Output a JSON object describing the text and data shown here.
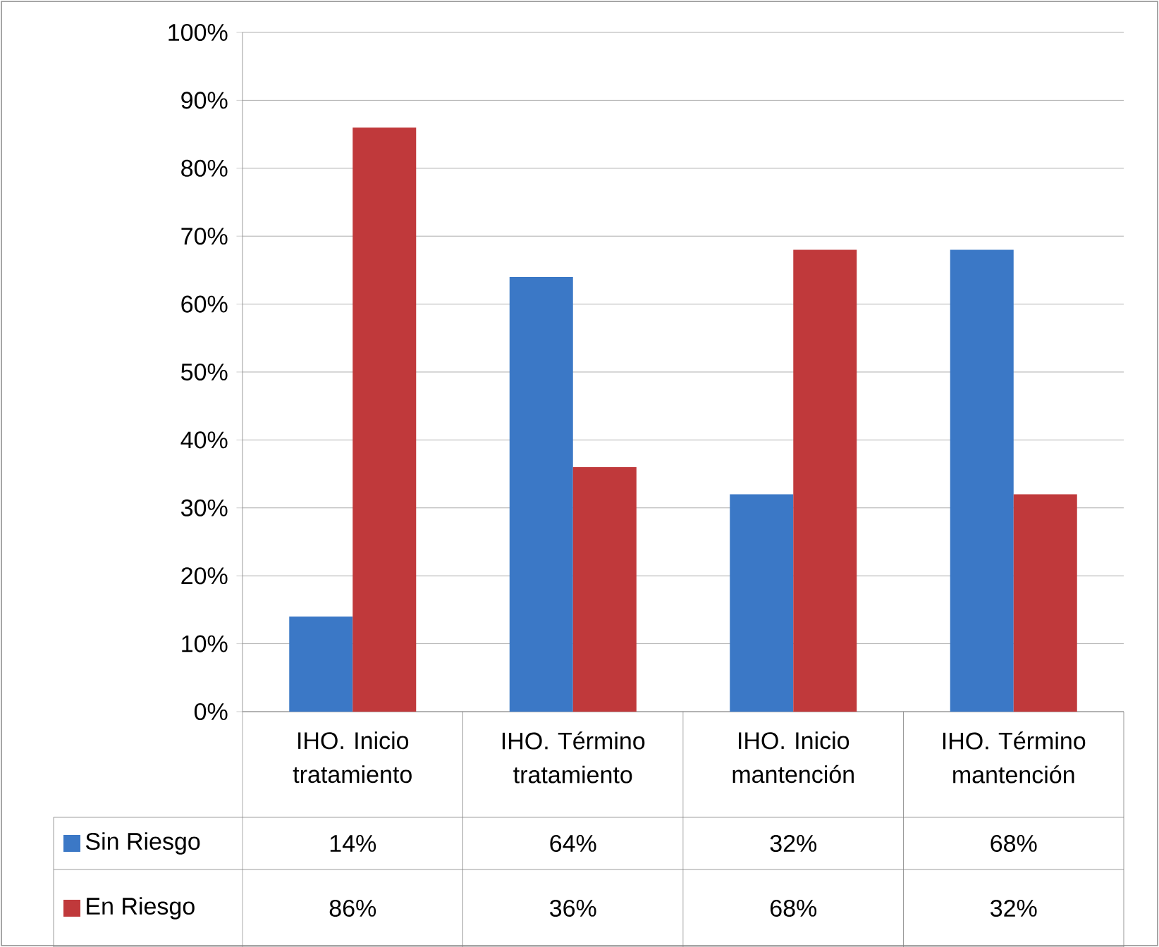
{
  "chart_data": {
    "type": "bar",
    "categories": [
      "IHO. Inicio tratamiento",
      "IHO. Término tratamiento",
      "IHO. Inicio mantención",
      "IHO. Término mantención"
    ],
    "series": [
      {
        "name": "Sin Riesgo",
        "color": "#3b78c6",
        "values": [
          14,
          64,
          32,
          68
        ],
        "value_labels": [
          "14%",
          "64%",
          "32%",
          "68%"
        ]
      },
      {
        "name": "En Riesgo",
        "color": "#c0393b",
        "values": [
          86,
          36,
          68,
          32
        ],
        "value_labels": [
          "86%",
          "36%",
          "68%",
          "32%"
        ]
      }
    ],
    "ylim": [
      0,
      100
    ],
    "yticks": [
      {
        "value": 0,
        "label": "0%"
      },
      {
        "value": 10,
        "label": "10%"
      },
      {
        "value": 20,
        "label": "20%"
      },
      {
        "value": 30,
        "label": "30%"
      },
      {
        "value": 40,
        "label": "40%"
      },
      {
        "value": 50,
        "label": "50%"
      },
      {
        "value": 60,
        "label": "60%"
      },
      {
        "value": 70,
        "label": "70%"
      },
      {
        "value": 80,
        "label": "80%"
      },
      {
        "value": 90,
        "label": "90%"
      },
      {
        "value": 100,
        "label": "100%"
      }
    ],
    "grid": "y",
    "legend": "bottom"
  }
}
